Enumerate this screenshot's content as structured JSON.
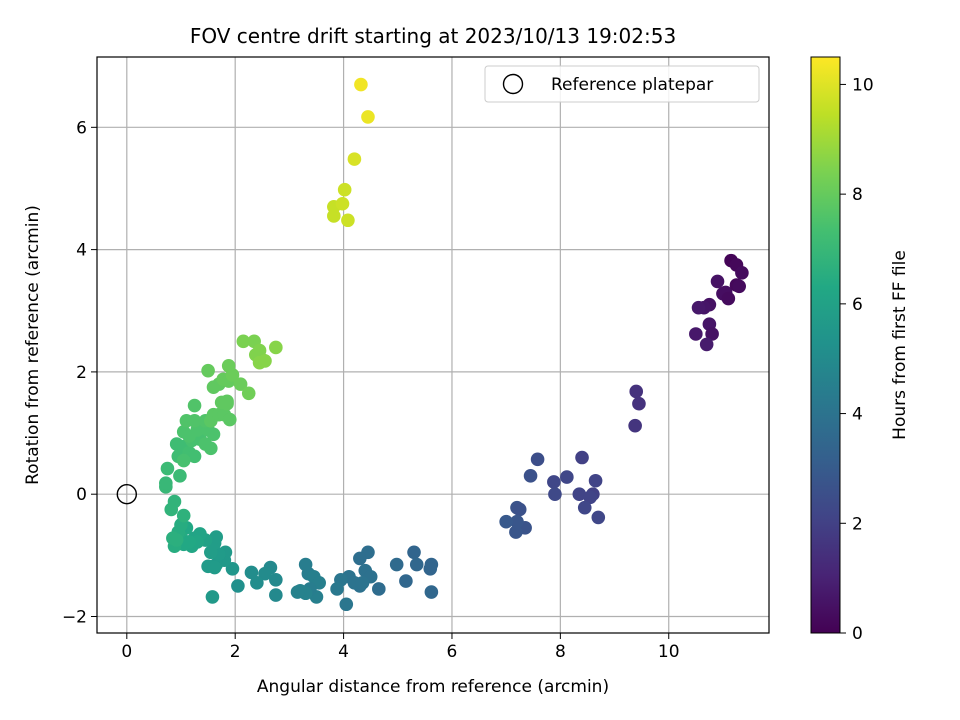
{
  "chart_data": {
    "type": "scatter",
    "title": "FOV centre drift starting at 2023/10/13 19:02:53",
    "xlabel": "Angular distance from reference (arcmin)",
    "ylabel": "Rotation from reference (arcmin)",
    "xlim": [
      -0.55,
      11.85
    ],
    "ylim": [
      -2.27,
      7.15
    ],
    "xticks": [
      0,
      2,
      4,
      6,
      8,
      10
    ],
    "yticks": [
      -2,
      0,
      2,
      4,
      6
    ],
    "grid": true,
    "legend": {
      "position": "top-right",
      "entries": [
        "Reference platepar"
      ]
    },
    "reference_point": {
      "x": 0,
      "y": 0,
      "label": "Reference platepar"
    },
    "colorbar": {
      "label": "Hours from first FF file",
      "min": 0,
      "max": 10.5,
      "ticks": [
        0,
        2,
        4,
        6,
        8,
        10
      ],
      "colormap": "viridis"
    },
    "points": [
      [
        11.15,
        3.82,
        0.1
      ],
      [
        11.25,
        3.75,
        0.2
      ],
      [
        11.35,
        3.62,
        0.3
      ],
      [
        11.05,
        3.3,
        0.4
      ],
      [
        11.25,
        3.42,
        0.2
      ],
      [
        11.3,
        3.4,
        0.3
      ],
      [
        10.9,
        3.48,
        0.5
      ],
      [
        11.0,
        3.28,
        0.4
      ],
      [
        11.1,
        3.2,
        0.3
      ],
      [
        10.75,
        3.1,
        0.5
      ],
      [
        10.65,
        3.05,
        0.6
      ],
      [
        10.55,
        3.05,
        0.7
      ],
      [
        10.75,
        2.78,
        0.6
      ],
      [
        10.5,
        2.62,
        0.7
      ],
      [
        10.8,
        2.62,
        0.5
      ],
      [
        10.7,
        2.45,
        0.8
      ],
      [
        9.4,
        1.68,
        1.5
      ],
      [
        9.45,
        1.48,
        1.5
      ],
      [
        9.38,
        1.12,
        1.6
      ],
      [
        8.4,
        0.6,
        2.0
      ],
      [
        8.65,
        0.22,
        2.1
      ],
      [
        8.12,
        0.28,
        2.2
      ],
      [
        7.88,
        0.2,
        2.2
      ],
      [
        8.35,
        0.0,
        2.1
      ],
      [
        8.6,
        0.0,
        2.0
      ],
      [
        8.55,
        -0.05,
        2.1
      ],
      [
        7.9,
        0.0,
        2.3
      ],
      [
        8.45,
        -0.22,
        2.2
      ],
      [
        8.7,
        -0.38,
        2.2
      ],
      [
        7.58,
        0.57,
        2.5
      ],
      [
        7.45,
        0.3,
        2.6
      ],
      [
        7.2,
        -0.22,
        2.7
      ],
      [
        7.25,
        -0.25,
        2.6
      ],
      [
        7.35,
        -0.55,
        2.7
      ],
      [
        7.2,
        -0.45,
        2.8
      ],
      [
        7.18,
        -0.62,
        2.8
      ],
      [
        7.0,
        -0.45,
        2.9
      ],
      [
        5.3,
        -0.95,
        3.4
      ],
      [
        5.62,
        -1.15,
        3.4
      ],
      [
        5.6,
        -1.22,
        3.4
      ],
      [
        5.35,
        -1.15,
        3.5
      ],
      [
        5.15,
        -1.42,
        3.5
      ],
      [
        4.98,
        -1.15,
        3.6
      ],
      [
        5.62,
        -1.6,
        3.5
      ],
      [
        4.65,
        -1.55,
        3.7
      ],
      [
        4.45,
        -0.95,
        3.8
      ],
      [
        4.3,
        -1.05,
        3.8
      ],
      [
        4.4,
        -1.25,
        3.9
      ],
      [
        4.5,
        -1.35,
        3.9
      ],
      [
        4.3,
        -1.5,
        3.9
      ],
      [
        4.1,
        -1.35,
        4.0
      ],
      [
        4.2,
        -1.45,
        4.0
      ],
      [
        4.05,
        -1.8,
        4.1
      ],
      [
        3.95,
        -1.4,
        4.1
      ],
      [
        3.88,
        -1.55,
        4.2
      ],
      [
        4.35,
        -1.45,
        4.0
      ],
      [
        3.3,
        -1.15,
        4.4
      ],
      [
        3.35,
        -1.3,
        4.4
      ],
      [
        3.45,
        -1.35,
        4.5
      ],
      [
        3.55,
        -1.45,
        4.5
      ],
      [
        3.5,
        -1.68,
        4.5
      ],
      [
        3.38,
        -1.55,
        4.4
      ],
      [
        3.3,
        -1.62,
        4.6
      ],
      [
        3.2,
        -1.58,
        4.6
      ],
      [
        3.15,
        -1.6,
        4.6
      ],
      [
        2.65,
        -1.2,
        4.9
      ],
      [
        2.75,
        -1.4,
        4.9
      ],
      [
        2.75,
        -1.65,
        4.9
      ],
      [
        2.55,
        -1.3,
        5.0
      ],
      [
        2.4,
        -1.45,
        5.1
      ],
      [
        2.3,
        -1.28,
        5.1
      ],
      [
        2.05,
        -1.5,
        5.2
      ],
      [
        1.95,
        -1.22,
        5.5
      ],
      [
        1.8,
        -1.08,
        5.6
      ],
      [
        1.65,
        -1.15,
        5.6
      ],
      [
        1.82,
        -0.95,
        5.6
      ],
      [
        1.7,
        -0.98,
        5.7
      ],
      [
        1.55,
        -0.95,
        5.8
      ],
      [
        1.62,
        -0.8,
        5.8
      ],
      [
        1.65,
        -0.7,
        5.8
      ],
      [
        1.5,
        -1.18,
        5.7
      ],
      [
        1.62,
        -1.2,
        5.7
      ],
      [
        1.58,
        -1.68,
        5.6
      ],
      [
        1.45,
        -0.75,
        6.0
      ],
      [
        1.35,
        -0.65,
        6.1
      ],
      [
        1.25,
        -0.72,
        6.1
      ],
      [
        1.2,
        -0.85,
        6.2
      ],
      [
        1.3,
        -0.78,
        6.2
      ],
      [
        1.1,
        -0.55,
        6.3
      ],
      [
        1.05,
        -0.82,
        6.3
      ],
      [
        1.0,
        -0.7,
        6.4
      ],
      [
        1.15,
        -0.78,
        6.3
      ],
      [
        0.95,
        -0.62,
        6.5
      ],
      [
        1.0,
        -0.5,
        6.5
      ],
      [
        0.88,
        -0.85,
        6.5
      ],
      [
        0.85,
        -0.72,
        6.6
      ],
      [
        0.92,
        -0.75,
        6.6
      ],
      [
        1.05,
        -0.35,
        6.7
      ],
      [
        0.82,
        -0.25,
        6.8
      ],
      [
        0.88,
        -0.12,
        6.8
      ],
      [
        0.72,
        0.12,
        7.0
      ],
      [
        0.72,
        0.18,
        7.0
      ],
      [
        0.75,
        0.42,
        7.1
      ],
      [
        0.98,
        0.3,
        7.1
      ],
      [
        0.95,
        0.62,
        7.2
      ],
      [
        0.92,
        0.82,
        7.2
      ],
      [
        1.05,
        0.78,
        7.2
      ],
      [
        1.15,
        0.68,
        7.3
      ],
      [
        1.25,
        0.62,
        7.3
      ],
      [
        1.05,
        0.55,
        7.4
      ],
      [
        1.2,
        0.88,
        7.4
      ],
      [
        1.35,
        0.9,
        7.4
      ],
      [
        1.45,
        0.82,
        7.5
      ],
      [
        1.55,
        0.75,
        7.5
      ],
      [
        1.6,
        0.98,
        7.5
      ],
      [
        1.05,
        1.02,
        7.5
      ],
      [
        1.15,
        0.95,
        7.5
      ],
      [
        1.3,
        1.05,
        7.5
      ],
      [
        1.4,
        1.12,
        7.5
      ],
      [
        1.5,
        1.05,
        7.5
      ],
      [
        1.1,
        1.2,
        7.6
      ],
      [
        1.25,
        1.2,
        7.6
      ],
      [
        1.45,
        1.2,
        7.6
      ],
      [
        1.25,
        1.45,
        7.6
      ],
      [
        1.55,
        1.2,
        7.8
      ],
      [
        1.6,
        1.3,
        7.8
      ],
      [
        1.7,
        1.3,
        7.8
      ],
      [
        1.8,
        1.3,
        7.8
      ],
      [
        1.9,
        1.22,
        7.8
      ],
      [
        1.85,
        1.48,
        7.9
      ],
      [
        1.75,
        1.5,
        7.9
      ],
      [
        1.85,
        1.52,
        7.9
      ],
      [
        1.6,
        1.75,
        7.9
      ],
      [
        1.7,
        1.8,
        7.9
      ],
      [
        1.78,
        1.88,
        8.0
      ],
      [
        1.88,
        1.85,
        8.0
      ],
      [
        1.5,
        2.02,
        8.0
      ],
      [
        1.88,
        2.1,
        8.1
      ],
      [
        1.95,
        1.95,
        8.1
      ],
      [
        2.1,
        1.8,
        8.1
      ],
      [
        2.25,
        1.65,
        8.2
      ],
      [
        2.15,
        2.5,
        8.4
      ],
      [
        2.35,
        2.5,
        8.4
      ],
      [
        2.45,
        2.35,
        8.5
      ],
      [
        2.38,
        2.28,
        8.5
      ],
      [
        2.5,
        2.2,
        8.5
      ],
      [
        2.45,
        2.15,
        8.6
      ],
      [
        2.55,
        2.18,
        8.6
      ],
      [
        2.75,
        2.4,
        8.6
      ],
      [
        3.82,
        4.7,
        9.6
      ],
      [
        3.82,
        4.55,
        9.6
      ],
      [
        3.98,
        4.75,
        9.7
      ],
      [
        4.02,
        4.98,
        9.7
      ],
      [
        4.08,
        4.48,
        9.7
      ],
      [
        4.2,
        5.48,
        9.9
      ],
      [
        4.32,
        6.7,
        10.3
      ],
      [
        4.45,
        6.17,
        10.2
      ]
    ]
  }
}
